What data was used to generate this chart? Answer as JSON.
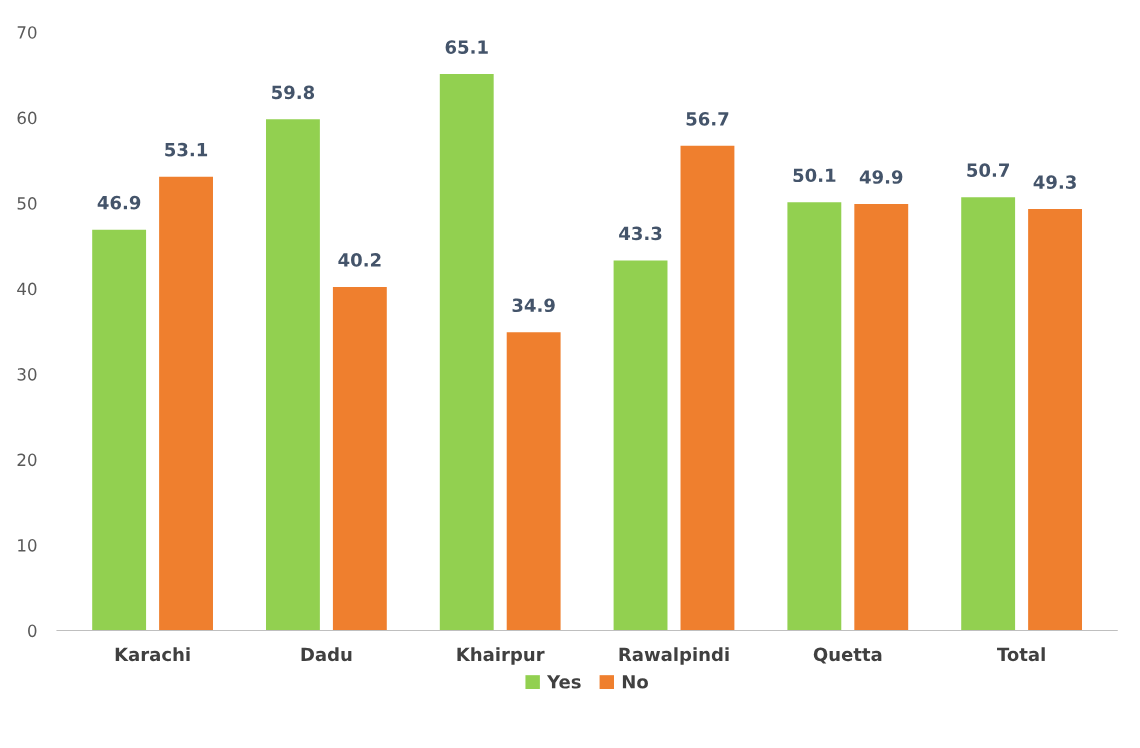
{
  "chart_data": {
    "type": "bar",
    "categories": [
      "Karachi",
      "Dadu",
      "Khairpur",
      "Rawalpindi",
      "Quetta",
      "Total"
    ],
    "series": [
      {
        "name": "Yes",
        "color": "#92d050",
        "values": [
          46.9,
          59.8,
          65.1,
          43.3,
          50.1,
          50.7
        ]
      },
      {
        "name": "No",
        "color": "#ef7f2e",
        "values": [
          53.1,
          40.2,
          34.9,
          56.7,
          49.9,
          49.3
        ]
      }
    ],
    "ylim": [
      0,
      70
    ],
    "yticks": [
      0,
      10,
      20,
      30,
      40,
      50,
      60,
      70
    ],
    "data_labels": true,
    "grid": false,
    "legend": "bottom"
  }
}
